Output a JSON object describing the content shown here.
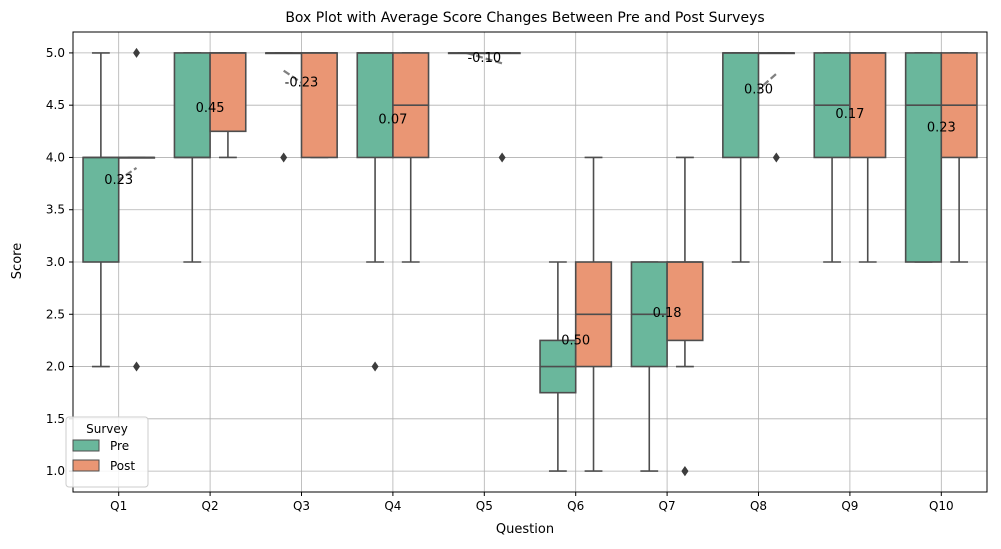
{
  "chart_data": {
    "type": "box",
    "title": "Box Plot with Average Score Changes Between Pre and Post Surveys",
    "xlabel": "Question",
    "ylabel": "Score",
    "ylim": [
      0.8,
      5.2
    ],
    "yticks": [
      "1.0",
      "1.5",
      "2.0",
      "2.5",
      "3.0",
      "3.5",
      "4.0",
      "4.5",
      "5.0"
    ],
    "categories": [
      "Q1",
      "Q2",
      "Q3",
      "Q4",
      "Q5",
      "Q6",
      "Q7",
      "Q8",
      "Q9",
      "Q10"
    ],
    "grid": true,
    "legend": {
      "title": "Survey",
      "placement": "bottom-left"
    },
    "series": [
      {
        "name": "Pre",
        "color": "#6ab79c",
        "boxes": [
          {
            "whisker_low": 2.0,
            "q1": 3.0,
            "median": 4.0,
            "q3": 4.0,
            "whisker_high": 5.0,
            "outliers": []
          },
          {
            "whisker_low": 3.0,
            "q1": 4.0,
            "median": 4.0,
            "q3": 5.0,
            "whisker_high": 5.0,
            "outliers": []
          },
          {
            "whisker_low": 5.0,
            "q1": 5.0,
            "median": 5.0,
            "q3": 5.0,
            "whisker_high": 5.0,
            "outliers": [
              4.0
            ]
          },
          {
            "whisker_low": 3.0,
            "q1": 4.0,
            "median": 5.0,
            "q3": 5.0,
            "whisker_high": 5.0,
            "outliers": [
              2.0
            ]
          },
          {
            "whisker_low": 5.0,
            "q1": 5.0,
            "median": 5.0,
            "q3": 5.0,
            "whisker_high": 5.0,
            "outliers": []
          },
          {
            "whisker_low": 1.0,
            "q1": 1.75,
            "median": 2.0,
            "q3": 2.25,
            "whisker_high": 3.0,
            "outliers": []
          },
          {
            "whisker_low": 1.0,
            "q1": 2.0,
            "median": 2.5,
            "q3": 3.0,
            "whisker_high": 3.0,
            "outliers": []
          },
          {
            "whisker_low": 3.0,
            "q1": 4.0,
            "median": 5.0,
            "q3": 5.0,
            "whisker_high": 5.0,
            "outliers": []
          },
          {
            "whisker_low": 3.0,
            "q1": 4.0,
            "median": 4.5,
            "q3": 5.0,
            "whisker_high": 5.0,
            "outliers": []
          },
          {
            "whisker_low": 3.0,
            "q1": 3.0,
            "median": 4.5,
            "q3": 5.0,
            "whisker_high": 5.0,
            "outliers": []
          }
        ]
      },
      {
        "name": "Post",
        "color": "#ea9674",
        "boxes": [
          {
            "whisker_low": 4.0,
            "q1": 4.0,
            "median": 4.0,
            "q3": 4.0,
            "whisker_high": 4.0,
            "outliers": [
              5.0,
              2.0
            ]
          },
          {
            "whisker_low": 4.0,
            "q1": 4.25,
            "median": 5.0,
            "q3": 5.0,
            "whisker_high": 5.0,
            "outliers": []
          },
          {
            "whisker_low": 4.0,
            "q1": 4.0,
            "median": 5.0,
            "q3": 5.0,
            "whisker_high": 5.0,
            "outliers": []
          },
          {
            "whisker_low": 3.0,
            "q1": 4.0,
            "median": 4.5,
            "q3": 5.0,
            "whisker_high": 5.0,
            "outliers": []
          },
          {
            "whisker_low": 5.0,
            "q1": 5.0,
            "median": 5.0,
            "q3": 5.0,
            "whisker_high": 5.0,
            "outliers": [
              4.0
            ]
          },
          {
            "whisker_low": 1.0,
            "q1": 2.0,
            "median": 2.5,
            "q3": 3.0,
            "whisker_high": 4.0,
            "outliers": []
          },
          {
            "whisker_low": 2.0,
            "q1": 2.25,
            "median": 3.0,
            "q3": 3.0,
            "whisker_high": 4.0,
            "outliers": [
              1.0,
              1.0
            ]
          },
          {
            "whisker_low": 5.0,
            "q1": 5.0,
            "median": 5.0,
            "q3": 5.0,
            "whisker_high": 5.0,
            "outliers": [
              4.0
            ]
          },
          {
            "whisker_low": 3.0,
            "q1": 4.0,
            "median": 5.0,
            "q3": 5.0,
            "whisker_high": 5.0,
            "outliers": []
          },
          {
            "whisker_low": 3.0,
            "q1": 4.0,
            "median": 4.5,
            "q3": 5.0,
            "whisker_high": 5.0,
            "outliers": []
          }
        ]
      }
    ],
    "mean_change_lines": [
      {
        "category": "Q1",
        "pre_mean": 3.67,
        "post_mean": 3.9,
        "label": "0.23"
      },
      {
        "category": "Q2",
        "pre_mean": 4.25,
        "post_mean": 4.7,
        "label": "0.45"
      },
      {
        "category": "Q3",
        "pre_mean": 4.83,
        "post_mean": 4.6,
        "label": "-0.23"
      },
      {
        "category": "Q4",
        "pre_mean": 4.33,
        "post_mean": 4.4,
        "label": "0.07"
      },
      {
        "category": "Q5",
        "pre_mean": 5.0,
        "post_mean": 4.9,
        "label": "-0.10"
      },
      {
        "category": "Q6",
        "pre_mean": 2.0,
        "post_mean": 2.5,
        "label": "0.50"
      },
      {
        "category": "Q7",
        "pre_mean": 2.42,
        "post_mean": 2.6,
        "label": "0.18"
      },
      {
        "category": "Q8",
        "pre_mean": 4.5,
        "post_mean": 4.8,
        "label": "0.30"
      },
      {
        "category": "Q9",
        "pre_mean": 4.33,
        "post_mean": 4.5,
        "label": "0.17"
      },
      {
        "category": "Q10",
        "pre_mean": 4.17,
        "post_mean": 4.4,
        "label": "0.23"
      }
    ],
    "mean_line_color": "#808080"
  }
}
